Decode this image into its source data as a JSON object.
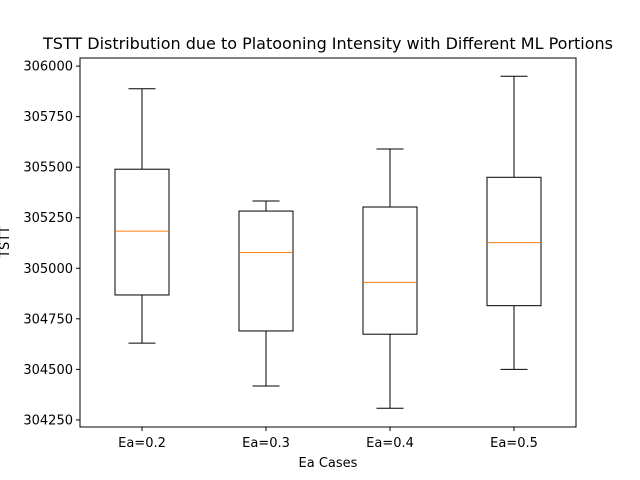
{
  "chart_data": {
    "type": "box",
    "title": "TSTT Distribution due to Platooning Intensity with Different ML Portions",
    "xlabel": "Ea Cases",
    "ylabel": "TSTT",
    "categories": [
      "Ea=0.2",
      "Ea=0.3",
      "Ea=0.4",
      "Ea=0.5"
    ],
    "boxes": [
      {
        "category": "Ea=0.2",
        "whisker_low": 304630,
        "q1": 304868,
        "median": 305184,
        "q3": 305490,
        "whisker_high": 305888
      },
      {
        "category": "Ea=0.3",
        "whisker_low": 304418,
        "q1": 304690,
        "median": 305078,
        "q3": 305283,
        "whisker_high": 305333
      },
      {
        "category": "Ea=0.4",
        "whisker_low": 304308,
        "q1": 304674,
        "median": 304930,
        "q3": 305303,
        "whisker_high": 305590
      },
      {
        "category": "Ea=0.5",
        "whisker_low": 304500,
        "q1": 304815,
        "median": 305127,
        "q3": 305450,
        "whisker_high": 305950
      }
    ],
    "ylim": [
      304215,
      306040
    ],
    "yticks": [
      304250,
      304500,
      304750,
      305000,
      305250,
      305500,
      305750,
      306000
    ],
    "ytick_labels": [
      "304250",
      "304500",
      "304750",
      "305000",
      "305250",
      "305500",
      "305750",
      "306000"
    ],
    "grid": false,
    "colors": {
      "box": "#000000",
      "median": "#ff7f0e",
      "axes": "#000000",
      "background": "#ffffff"
    }
  }
}
